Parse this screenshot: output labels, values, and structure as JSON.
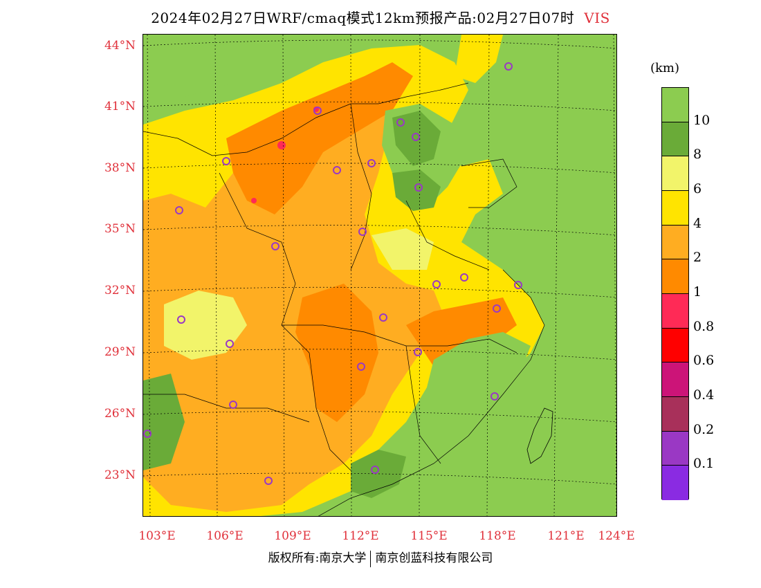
{
  "title": {
    "main": "2024年02月27日WRF/cmaq模式12km预报产品:02月27日07时",
    "variable": "VIS"
  },
  "legend": {
    "unit": "(km)",
    "colors": [
      "#8ccc50",
      "#6aab38",
      "#f2f46a",
      "#ffe400",
      "#ffad21",
      "#ff8a00",
      "#ff2a56",
      "#ff0000",
      "#cc1478",
      "#a8305a",
      "#9a38c4",
      "#8a2be2"
    ],
    "labels": [
      "10",
      "8",
      "6",
      "4",
      "2",
      "1",
      "0.8",
      "0.6",
      "0.4",
      "0.2",
      "0.1"
    ]
  },
  "axes": {
    "lat_labels": [
      "44°N",
      "41°N",
      "38°N",
      "35°N",
      "32°N",
      "29°N",
      "26°N",
      "23°N"
    ],
    "lon_labels": [
      "103°E",
      "106°E",
      "109°E",
      "112°E",
      "115°E",
      "118°E",
      "121°E",
      "124°E"
    ]
  },
  "map": {
    "sea_color": "#8ccc50",
    "land_colors": {
      "orange": "#ffad21",
      "dark_orange": "#ff8a00",
      "yellow": "#ffe400",
      "light_yellow": "#f2f46a",
      "dark_green": "#6aab38",
      "red": "#ff2a56"
    },
    "city_marker_color": "#9a38c4"
  },
  "copyright": {
    "left": "版权所有:南京大学",
    "right": "南京创蓝科技有限公司"
  }
}
